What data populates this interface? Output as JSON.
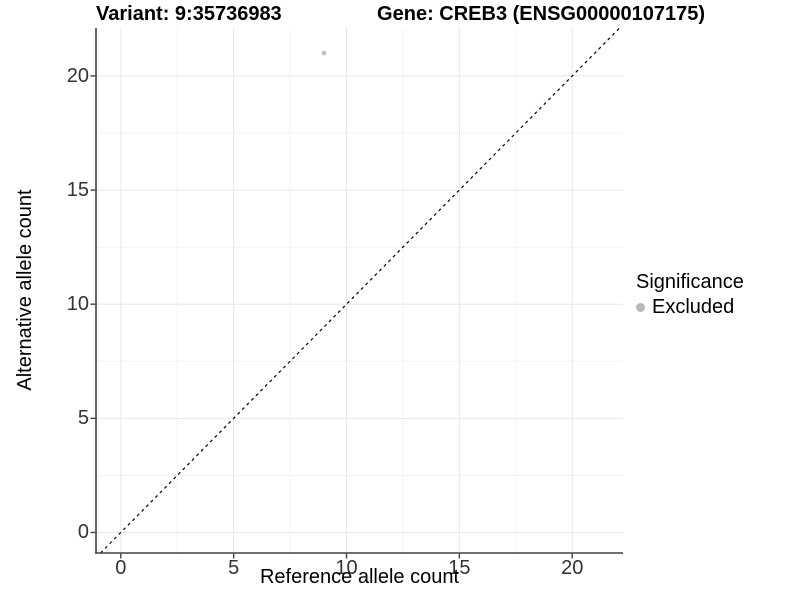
{
  "title": {
    "variant": "Variant: 9:35736983",
    "gene": "Gene: CREB3 (ENSG00000107175)"
  },
  "axes": {
    "x_label": "Reference allele count",
    "y_label": "Alternative allele count"
  },
  "legend": {
    "title": "Significance",
    "items": [
      {
        "label": "Excluded",
        "color": "#b9b9b9"
      }
    ]
  },
  "chart_data": {
    "type": "scatter",
    "title": "Variant: 9:35736983   Gene: CREB3 (ENSG00000107175)",
    "xlabel": "Reference allele count",
    "ylabel": "Alternative allele count",
    "points": [
      {
        "x": 9,
        "y": 21,
        "series": "Excluded",
        "color": "#bfbfbf"
      }
    ],
    "reference_line": {
      "kind": "abline",
      "slope": 1,
      "intercept": 0,
      "style": "dashed",
      "color": "#000000"
    },
    "xlim": [
      -1.1,
      22.25
    ],
    "ylim": [
      -0.9,
      22.1
    ],
    "x_ticks": [
      0,
      5,
      10,
      15,
      20
    ],
    "y_ticks": [
      0,
      5,
      10,
      15,
      20
    ],
    "minor_ticks": [
      2.5,
      7.5,
      12.5,
      17.5
    ],
    "grid": true,
    "legend_position": "right",
    "style": {
      "grid_major": "#e7e7e7",
      "grid_minor": "#f3f3f3",
      "axis_line": "#404040",
      "tick_text": "#333333",
      "point_size": 2.4,
      "dash": "3,3.5"
    }
  }
}
